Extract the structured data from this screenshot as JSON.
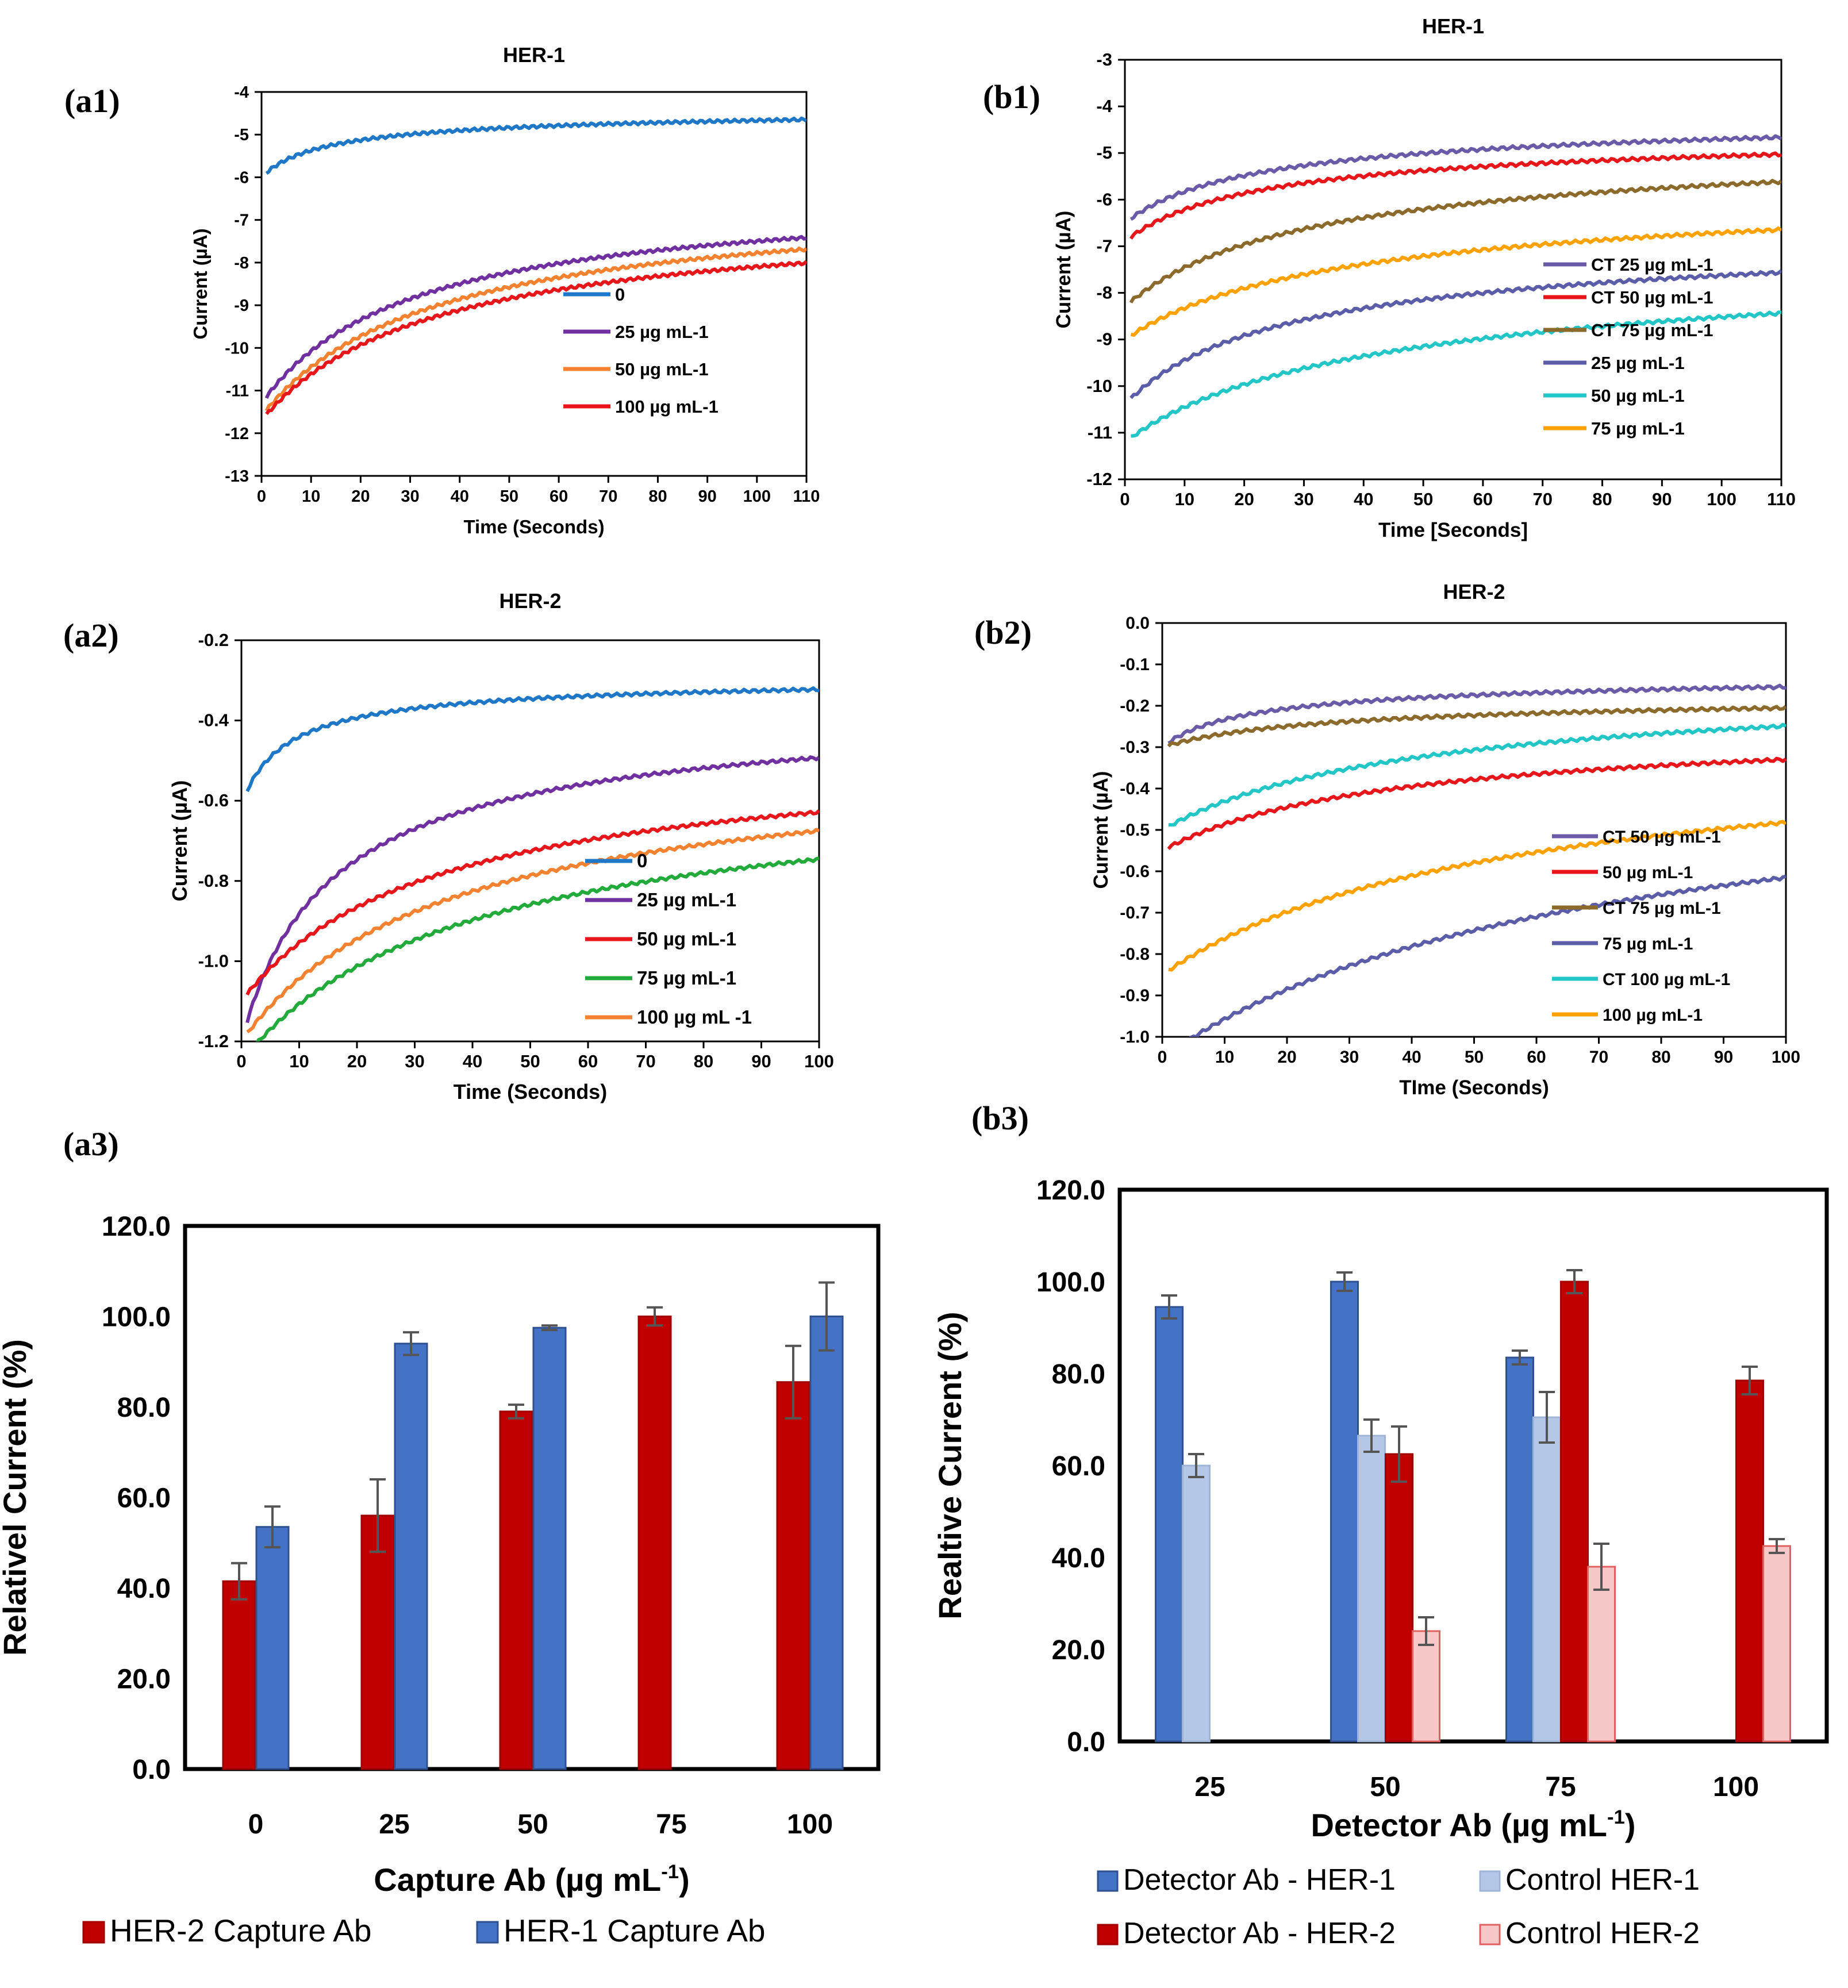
{
  "chart_data": [
    {
      "id": "a1",
      "panel_label": "(a1)",
      "type": "line",
      "title": "HER-1",
      "xlabel": "Time (Seconds)",
      "ylabel": "Current (µA)",
      "xlim": [
        0,
        110
      ],
      "ylim": [
        -13,
        -4
      ],
      "xstep": 10,
      "ystep": 1,
      "ydec": 0,
      "series": [
        {
          "name": "0",
          "color": "#1f77c8",
          "y0": -6.0,
          "yinf": -4.25,
          "tau": 8,
          "p": 0.55
        },
        {
          "name": "25 µg mL-1",
          "color": "#7030a0",
          "y0": -11.3,
          "yinf": -6.2,
          "tau": 28,
          "p": 0.9
        },
        {
          "name": "50  µg mL-1",
          "color": "#f58231",
          "y0": -11.6,
          "yinf": -6.3,
          "tau": 32,
          "p": 0.9
        },
        {
          "name": "100  µg mL-1",
          "color": "#e8161b",
          "y0": -11.7,
          "yinf": -6.7,
          "tau": 32,
          "p": 0.9
        }
      ]
    },
    {
      "id": "b1",
      "panel_label": "(b1)",
      "type": "line",
      "title": "HER-1",
      "xlabel": "Time [Seconds]",
      "ylabel": "Current (µA)",
      "xlim": [
        0,
        110
      ],
      "ylim": [
        -12,
        -3
      ],
      "xstep": 10,
      "ystep": 1,
      "ydec": 0,
      "series": [
        {
          "name": "CT  25 µg mL-1",
          "color": "#6a5aa8",
          "y0": -6.5,
          "yinf": -3.95,
          "tau": 15,
          "p": 0.6
        },
        {
          "name": "CT 50 µg mL-1",
          "color": "#e8161b",
          "y0": -6.9,
          "yinf": -4.3,
          "tau": 15,
          "p": 0.6
        },
        {
          "name": "CT 75 µg mL-1",
          "color": "#8b6a2c",
          "y0": -8.3,
          "yinf": -4.4,
          "tau": 22,
          "p": 0.65
        },
        {
          "name": "25 µg mL-1",
          "color": "#5c5da8",
          "y0": -10.4,
          "yinf": -6.3,
          "tau": 18,
          "p": 0.6
        },
        {
          "name": " 50 µg mL-1",
          "color": "#22c6c6",
          "y0": -11.2,
          "yinf": -6.35,
          "tau": 25,
          "p": 0.5
        },
        {
          "name": "75 µg mL-1",
          "color": "#ffa200",
          "y0": -9.0,
          "yinf": -5.3,
          "tau": 25,
          "p": 0.6
        }
      ]
    },
    {
      "id": "a2",
      "panel_label": "(a2)",
      "type": "line",
      "title": "HER-2",
      "xlabel": "Time (Seconds)",
      "ylabel": "Current (µA)",
      "xlim": [
        0,
        100
      ],
      "ylim": [
        -1.2,
        -0.2
      ],
      "xstep": 10,
      "ystep": 0.2,
      "ydec": 1,
      "series": [
        {
          "name": "0",
          "color": "#1f77c8",
          "y0": -0.61,
          "yinf": -0.285,
          "tau": 6,
          "p": 0.75
        },
        {
          "name": "25 µg mL-1",
          "color": "#7030a0",
          "y0": -1.2,
          "yinf": -0.33,
          "tau": 12,
          "p": 0.75
        },
        {
          "name": "50 µg mL-1",
          "color": "#e8161b",
          "y0": -1.1,
          "yinf": -0.43,
          "tau": 28,
          "p": 0.8
        },
        {
          "name": "75 µg mL-1",
          "color": "#22aa3a",
          "y0": -1.25,
          "yinf": -0.5,
          "tau": 33,
          "p": 0.8
        },
        {
          "name": "100  µg mL -1",
          "color": "#f58231",
          "y0": -1.2,
          "yinf": -0.44,
          "tau": 30,
          "p": 0.8
        }
      ]
    },
    {
      "id": "b2",
      "panel_label": "(b2)",
      "type": "line",
      "title": "HER-2",
      "xlabel": "TIme (Seconds)",
      "ylabel": "Current (µA)",
      "xlim": [
        0,
        100
      ],
      "ylim": [
        -1.0,
        0.0
      ],
      "xstep": 10,
      "ystep": 0.1,
      "ydec": 1,
      "series": [
        {
          "name": "CT 50 µg mL-1",
          "color": "#6a5aa8",
          "y0": -0.3,
          "yinf": -0.1,
          "tau": 8,
          "p": 0.5
        },
        {
          "name": "50 µg mL-1",
          "color": "#e8161b",
          "y0": -0.55,
          "yinf": -0.22,
          "tau": 30,
          "p": 0.75
        },
        {
          "name": "CT 75 µg mL-1",
          "color": "#8b6a2c",
          "y0": -0.3,
          "yinf": -0.16,
          "tau": 18,
          "p": 0.6
        },
        {
          "name": "75 µg mL-1",
          "color": "#5c5da8",
          "y0": -1.05,
          "yinf": -0.25,
          "tau": 60,
          "p": 0.8
        },
        {
          "name": "CT 100 µg mL-1",
          "color": "#22c6c6",
          "y0": -0.5,
          "yinf": -0.12,
          "tau": 35,
          "p": 0.8
        },
        {
          "name": "100 µg mL-1",
          "color": "#ffa200",
          "y0": -0.85,
          "yinf": -0.22,
          "tau": 45,
          "p": 0.75
        }
      ]
    },
    {
      "id": "a3",
      "panel_label": "(a3)",
      "type": "bar",
      "xlabel": "Capture Ab (µg mL",
      "xlabel_sup": "-1",
      "xlabel_tail": ")",
      "ylabel": "Relativel Current (%)",
      "ylim": [
        0,
        120
      ],
      "ystep": 20,
      "categories": [
        "0",
        "25",
        "50",
        "75",
        "100"
      ],
      "series": [
        {
          "name": "HER-2 Capture Ab",
          "color": "#c00000",
          "edge": "#a00000",
          "values": [
            41.5,
            56.0,
            79.0,
            100.0,
            85.5
          ],
          "errors": [
            4.0,
            8.0,
            1.5,
            2.0,
            8.0
          ]
        },
        {
          "name": "HER-1 Capture Ab",
          "color": "#4472c4",
          "edge": "#2f528f",
          "values": [
            53.5,
            94.0,
            97.5,
            null,
            100.0
          ],
          "errors": [
            4.5,
            2.5,
            0.5,
            null,
            7.5
          ]
        }
      ]
    },
    {
      "id": "b3",
      "panel_label": "(b3)",
      "type": "bar",
      "xlabel": "Detector Ab (µg mL",
      "xlabel_sup": "-1",
      "xlabel_tail": ")",
      "ylabel": "Realtive Current (%)",
      "ylim": [
        0,
        120
      ],
      "ystep": 20,
      "categories": [
        "25",
        "50",
        "75",
        "100"
      ],
      "series": [
        {
          "name": "Detector Ab - HER-1",
          "color": "#4472c4",
          "edge": "#2f528f",
          "values": [
            94.5,
            100.0,
            83.5,
            null
          ],
          "errors": [
            2.5,
            2.0,
            1.5,
            null
          ]
        },
        {
          "name": "Control HER-1",
          "color": "#b4c7e7",
          "edge": "#9fb4d6",
          "values": [
            60.0,
            66.5,
            70.5,
            null
          ],
          "errors": [
            2.5,
            3.5,
            5.5,
            null
          ]
        },
        {
          "name": "Detector Ab - HER-2",
          "color": "#c00000",
          "edge": "#a00000",
          "values": [
            null,
            62.5,
            100.0,
            78.5
          ],
          "errors": [
            null,
            6.0,
            2.5,
            3.0
          ]
        },
        {
          "name": "Control HER-2",
          "color": "#f8c8c8",
          "edge": "#e06060",
          "values": [
            null,
            24.0,
            38.0,
            42.5
          ],
          "errors": [
            null,
            3.0,
            5.0,
            1.5
          ]
        }
      ]
    }
  ]
}
